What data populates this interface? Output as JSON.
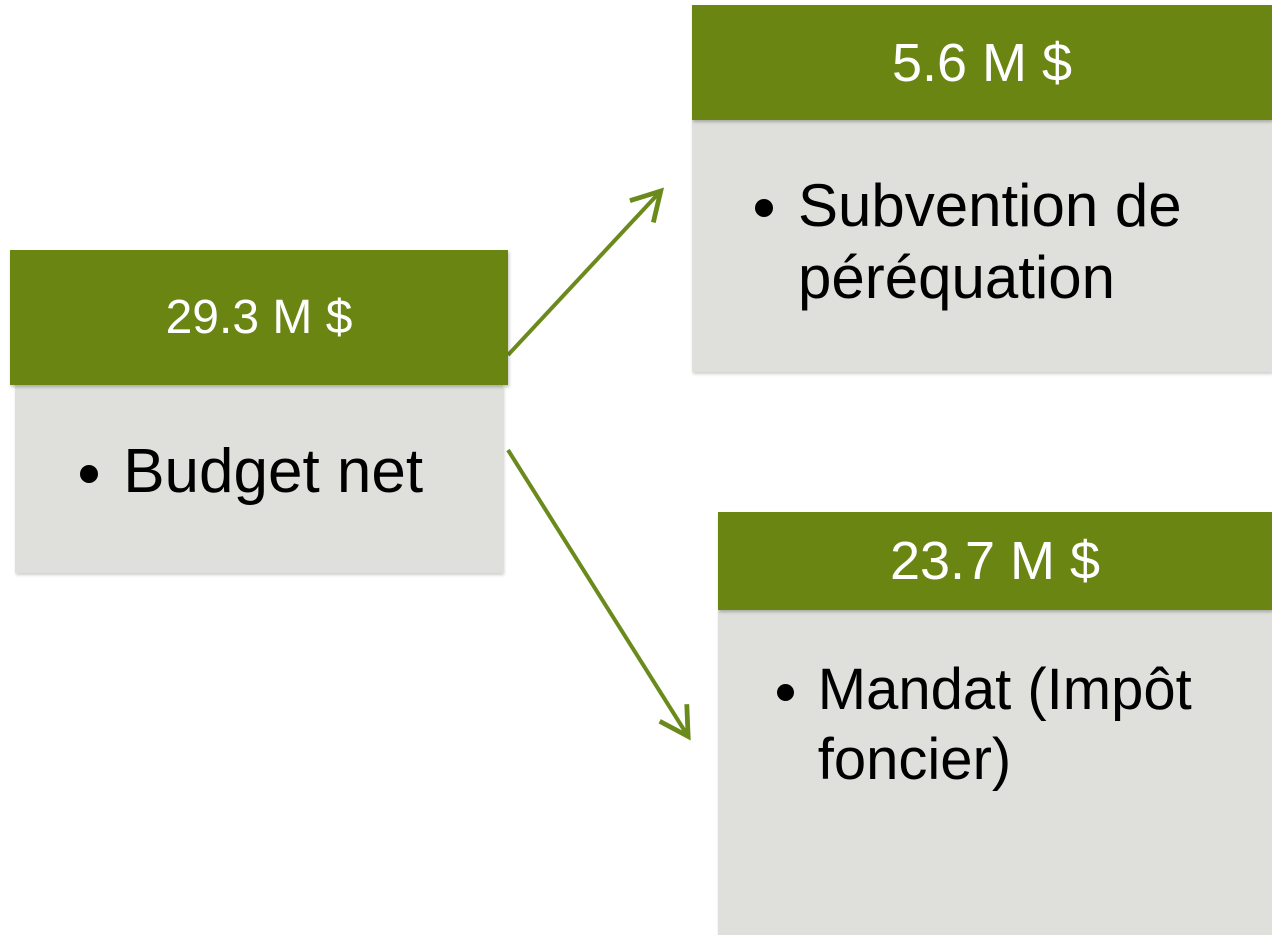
{
  "nodes": [
    {
      "header": "29.3 M $",
      "items": [
        "Budget net"
      ]
    },
    {
      "header": "5.6 M $",
      "items": [
        "Subvention de péréquation"
      ]
    },
    {
      "header": "23.7 M $",
      "items": [
        "Mandat (Impôt foncier)"
      ]
    }
  ]
}
